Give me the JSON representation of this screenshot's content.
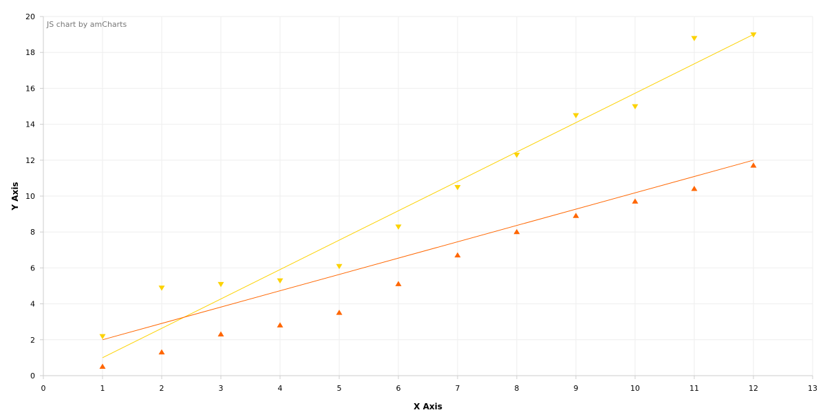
{
  "credit": "JS chart by amCharts",
  "chart_data": {
    "type": "scatter",
    "xlabel": "X Axis",
    "ylabel": "Y Axis",
    "xlim": [
      0,
      13
    ],
    "ylim": [
      0,
      20
    ],
    "x_ticks": [
      0,
      1,
      2,
      3,
      4,
      5,
      6,
      7,
      8,
      9,
      10,
      11,
      12,
      13
    ],
    "y_ticks": [
      0,
      2,
      4,
      6,
      8,
      10,
      12,
      14,
      16,
      18,
      20
    ],
    "grid": true,
    "series": [
      {
        "color": "#FCD202",
        "marker": "triangle-down",
        "points": [
          {
            "x": 1,
            "y": 2.2
          },
          {
            "x": 2,
            "y": 4.9
          },
          {
            "x": 3,
            "y": 5.1
          },
          {
            "x": 4,
            "y": 5.3
          },
          {
            "x": 5,
            "y": 6.1
          },
          {
            "x": 6,
            "y": 8.3
          },
          {
            "x": 7,
            "y": 10.5
          },
          {
            "x": 8,
            "y": 12.3
          },
          {
            "x": 9,
            "y": 14.5
          },
          {
            "x": 10,
            "y": 15.0
          },
          {
            "x": 11,
            "y": 18.8
          },
          {
            "x": 12,
            "y": 19.0
          }
        ],
        "trend": [
          {
            "x": 1,
            "y": 1.0
          },
          {
            "x": 12,
            "y": 19.0
          }
        ]
      },
      {
        "color": "#FF6600",
        "marker": "triangle-up",
        "points": [
          {
            "x": 1,
            "y": 0.5
          },
          {
            "x": 2,
            "y": 1.3
          },
          {
            "x": 3,
            "y": 2.3
          },
          {
            "x": 4,
            "y": 2.8
          },
          {
            "x": 5,
            "y": 3.5
          },
          {
            "x": 6,
            "y": 5.1
          },
          {
            "x": 7,
            "y": 6.7
          },
          {
            "x": 8,
            "y": 8.0
          },
          {
            "x": 9,
            "y": 8.9
          },
          {
            "x": 10,
            "y": 9.7
          },
          {
            "x": 11,
            "y": 10.4
          },
          {
            "x": 12,
            "y": 11.7
          }
        ],
        "trend": [
          {
            "x": 1,
            "y": 2.0
          },
          {
            "x": 12,
            "y": 12.0
          }
        ]
      }
    ]
  }
}
